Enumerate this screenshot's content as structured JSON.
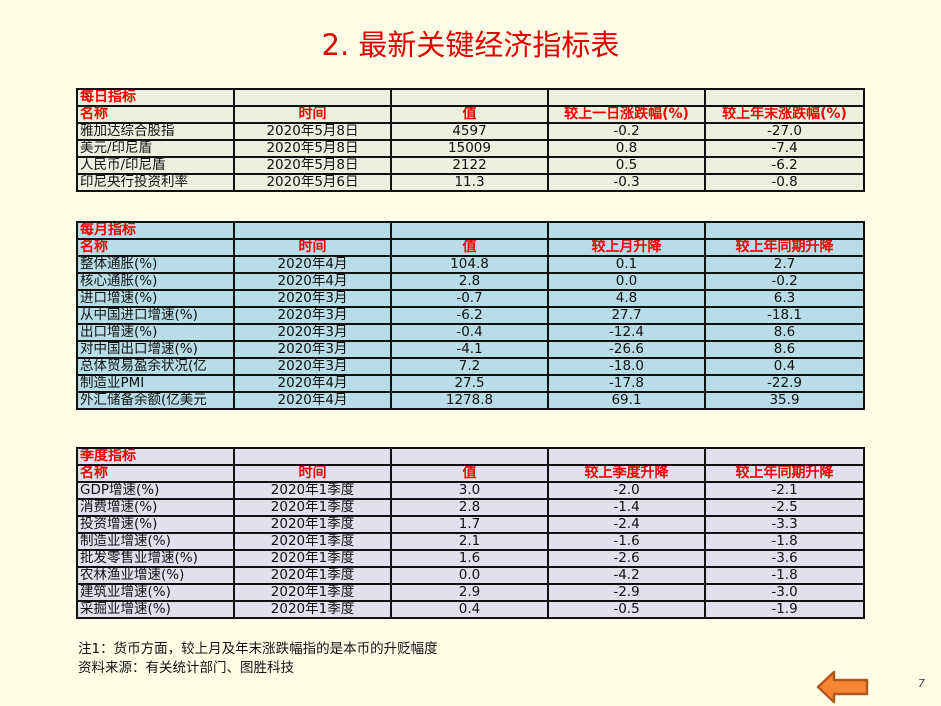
{
  "title": "2. 最新关键经济指标表",
  "daily": {
    "section_label": "每日指标",
    "headers": [
      "名称",
      "时间",
      "值",
      "较上一日涨跌幅(%)",
      "较上年末涨跌幅(%)"
    ],
    "background": "#EBF1DC",
    "rows": [
      [
        "雅加达综合股指",
        "2020年5月8日",
        "4597",
        "-0.2",
        "-27.0"
      ],
      [
        "美元/印尼盾",
        "2020年5月8日",
        "15009",
        "0.8",
        "-7.4"
      ],
      [
        "人民币/印尼盾",
        "2020年5月8日",
        "2122",
        "0.5",
        "-6.2"
      ],
      [
        "印尼央行投资利率",
        "2020年5月6日",
        "11.3",
        "-0.3",
        "-0.8"
      ]
    ]
  },
  "monthly": {
    "section_label": "每月指标",
    "headers": [
      "名称",
      "时间",
      "值",
      "较上月升降",
      "较上年同期升降"
    ],
    "background": "#B8DDE8",
    "rows": [
      [
        "整体通胀(%)",
        "2020年4月",
        "104.8",
        "0.1",
        "2.7"
      ],
      [
        "核心通胀(%)",
        "2020年4月",
        "2.8",
        "0.0",
        "-0.2"
      ],
      [
        "进口增速(%)",
        "2020年3月",
        "-0.7",
        "4.8",
        "6.3"
      ],
      [
        "从中国进口增速(%)",
        "2020年3月",
        "-6.2",
        "27.7",
        "-18.1"
      ],
      [
        "出口增速(%)",
        "2020年3月",
        "-0.4",
        "-12.4",
        "8.6"
      ],
      [
        "对中国出口增速(%)",
        "2020年3月",
        "-4.1",
        "-26.6",
        "8.6"
      ],
      [
        "总体贸易盈余状况(亿",
        "2020年3月",
        "7.2",
        "-18.0",
        "0.4"
      ],
      [
        "制造业PMI",
        "2020年4月",
        "27.5",
        "-17.8",
        "-22.9"
      ],
      [
        "外汇储备余额(亿美元",
        "2020年4月",
        "1278.8",
        "69.1",
        "35.9"
      ]
    ]
  },
  "quarterly": {
    "section_label": "季度指标",
    "headers": [
      "名称",
      "时间",
      "值",
      "较上季度升降",
      "较上年同期升降"
    ],
    "background": "#E1E0EE",
    "rows": [
      [
        "GDP增速(%)",
        "2020年1季度",
        "3.0",
        "-2.0",
        "-2.1"
      ],
      [
        "消费增速(%)",
        "2020年1季度",
        "2.8",
        "-1.4",
        "-2.5"
      ],
      [
        "投资增速(%)",
        "2020年1季度",
        "1.7",
        "-2.4",
        "-3.3"
      ],
      [
        "制造业增速(%)",
        "2020年1季度",
        "2.1",
        "-1.6",
        "-1.8"
      ],
      [
        "批发零售业增速(%)",
        "2020年1季度",
        "1.6",
        "-2.6",
        "-3.6"
      ],
      [
        "农林渔业增速(%)",
        "2020年1季度",
        "0.0",
        "-4.2",
        "-1.8"
      ],
      [
        "建筑业增速(%)",
        "2020年1季度",
        "2.9",
        "-2.9",
        "-3.0"
      ],
      [
        "采掘业增速(%)",
        "2020年1季度",
        "0.4",
        "-0.5",
        "-1.9"
      ]
    ]
  },
  "notes": {
    "note1": "注1：货币方面，较上月及年末涨跌幅指的是本币的升贬幅度",
    "source": "资料来源：有关统计部门、图胜科技"
  },
  "nav": {
    "back_icon": "left-arrow-icon",
    "arrow_color": "#F58634"
  },
  "page_number": "7"
}
